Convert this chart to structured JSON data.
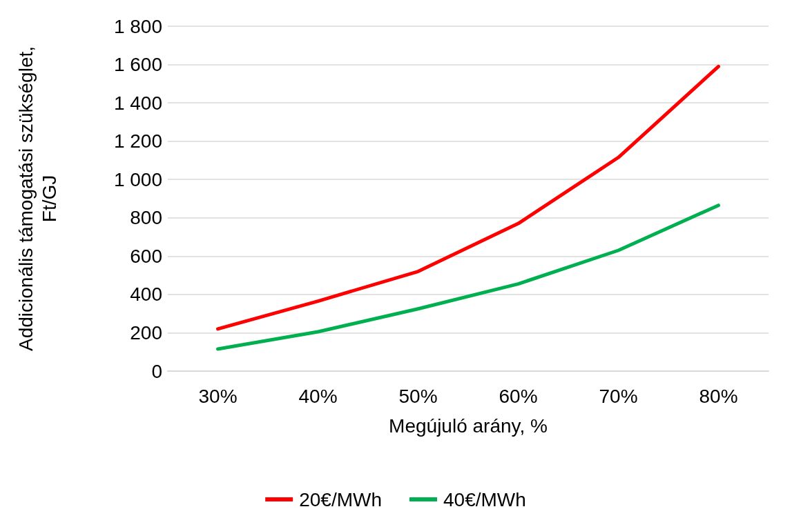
{
  "chart_data": {
    "type": "line",
    "xlabel": "Megújuló arány, %",
    "ylabel": "Addicionális támogatási szükséglet,\nFt/GJ",
    "categories": [
      "30%",
      "40%",
      "50%",
      "60%",
      "70%",
      "80%"
    ],
    "series": [
      {
        "name": "20€/MWh",
        "color": "#ff0000",
        "values": [
          220,
          365,
          520,
          770,
          1115,
          1590
        ]
      },
      {
        "name": "40€/MWh",
        "color": "#00b050",
        "values": [
          115,
          205,
          325,
          455,
          630,
          865
        ]
      }
    ],
    "ylim": [
      0,
      1800
    ],
    "yticks": [
      0,
      200,
      400,
      600,
      800,
      {
        "value": 1000,
        "label": "1 000"
      },
      {
        "value": 1200,
        "label": "1 200"
      },
      {
        "value": 1400,
        "label": "1 400"
      },
      {
        "value": 1600,
        "label": "1 600"
      },
      {
        "value": 1800,
        "label": "1 800"
      }
    ],
    "grid": "y",
    "legend": "bottom",
    "marker": "none",
    "line_style": "solid"
  }
}
